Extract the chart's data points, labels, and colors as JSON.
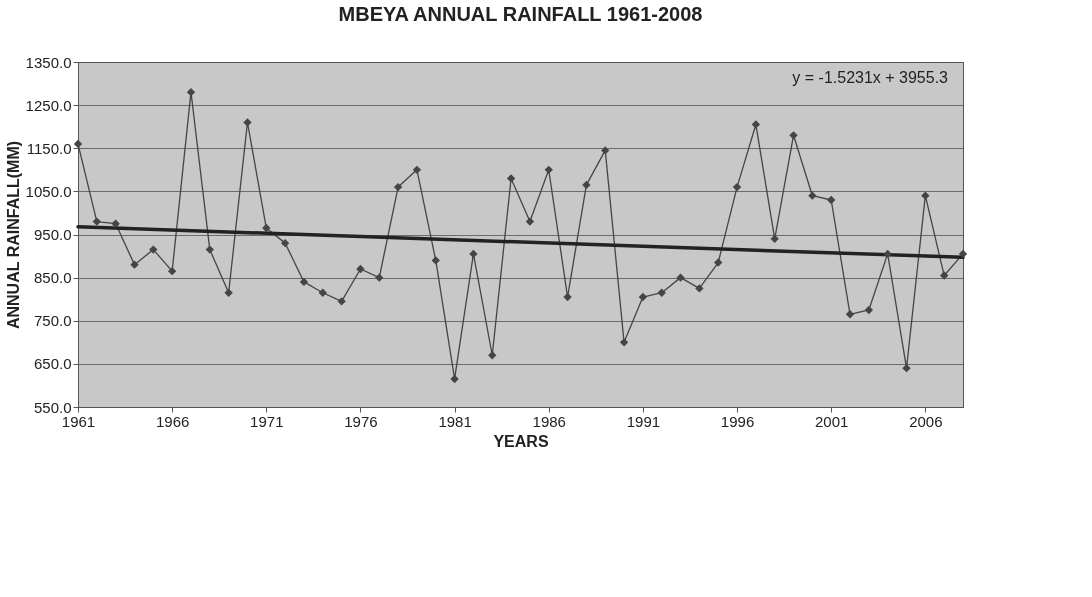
{
  "chart_data": {
    "type": "line",
    "title": "MBEYA ANNUAL RAINFALL 1961-2008",
    "xlabel": "YEARS",
    "ylabel": "ANNUAL RAINFALL(MM)",
    "x": [
      1961,
      1962,
      1963,
      1964,
      1965,
      1966,
      1967,
      1968,
      1969,
      1970,
      1971,
      1972,
      1973,
      1974,
      1975,
      1976,
      1977,
      1978,
      1979,
      1980,
      1981,
      1982,
      1983,
      1984,
      1985,
      1986,
      1987,
      1988,
      1989,
      1990,
      1991,
      1992,
      1993,
      1994,
      1995,
      1996,
      1997,
      1998,
      1999,
      2000,
      2001,
      2002,
      2003,
      2004,
      2005,
      2006,
      2007,
      2008
    ],
    "series": [
      {
        "color": "#454545",
        "marker": "diamond",
        "values": [
          1160,
          980,
          975,
          880,
          915,
          865,
          1280,
          915,
          815,
          1210,
          965,
          930,
          840,
          815,
          795,
          870,
          850,
          1060,
          1100,
          890,
          615,
          905,
          670,
          1080,
          980,
          1100,
          805,
          1065,
          1145,
          700,
          805,
          815,
          850,
          825,
          885,
          1060,
          1205,
          940,
          1180,
          1040,
          1030,
          765,
          775,
          905,
          640,
          1040,
          855,
          905
        ]
      },
      {
        "type": "line",
        "color": "#222222",
        "marker": "none",
        "x": [
          1961,
          2008
        ],
        "values": [
          968,
          897
        ]
      }
    ],
    "annotations": [
      "y = -1.5231x + 3955.3"
    ],
    "xlim": [
      1961,
      2008
    ],
    "xticks": [
      1961,
      1966,
      1971,
      1976,
      1981,
      1986,
      1991,
      1996,
      2001,
      2006
    ],
    "ylim": [
      550,
      1350
    ],
    "yticks": [
      {
        "value": 550,
        "label": "550.0"
      },
      {
        "value": 650,
        "label": "650.0"
      },
      {
        "value": 750,
        "label": "750.0"
      },
      {
        "value": 850,
        "label": "850.0"
      },
      {
        "value": 950,
        "label": "950.0"
      },
      {
        "value": 1050,
        "label": "1050.0"
      },
      {
        "value": 1150,
        "label": "1150.0"
      },
      {
        "value": 1250,
        "label": "1250.0"
      },
      {
        "value": 1350,
        "label": "1350.0"
      }
    ],
    "grid": "y"
  }
}
